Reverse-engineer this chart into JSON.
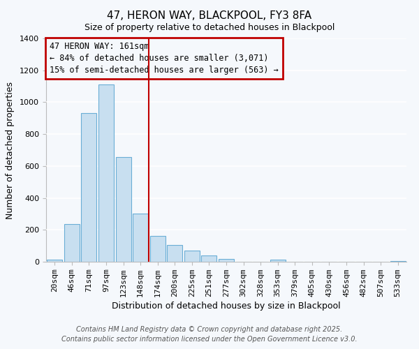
{
  "title": "47, HERON WAY, BLACKPOOL, FY3 8FA",
  "subtitle": "Size of property relative to detached houses in Blackpool",
  "xlabel": "Distribution of detached houses by size in Blackpool",
  "ylabel": "Number of detached properties",
  "bar_labels": [
    "20sqm",
    "46sqm",
    "71sqm",
    "97sqm",
    "123sqm",
    "148sqm",
    "174sqm",
    "200sqm",
    "225sqm",
    "251sqm",
    "277sqm",
    "302sqm",
    "328sqm",
    "353sqm",
    "379sqm",
    "405sqm",
    "430sqm",
    "456sqm",
    "482sqm",
    "507sqm",
    "533sqm"
  ],
  "bar_values": [
    15,
    235,
    930,
    1110,
    655,
    300,
    160,
    105,
    68,
    38,
    18,
    0,
    0,
    15,
    0,
    0,
    0,
    0,
    0,
    0,
    5
  ],
  "bar_face_color": "#c8dff0",
  "bar_edge_color": "#6aaed6",
  "vline_x": 5.5,
  "vline_color": "#c00000",
  "annotation_title": "47 HERON WAY: 161sqm",
  "annotation_line1": "← 84% of detached houses are smaller (3,071)",
  "annotation_line2": "15% of semi-detached houses are larger (563) →",
  "annotation_box_color": "#c00000",
  "ylim": [
    0,
    1400
  ],
  "yticks": [
    0,
    200,
    400,
    600,
    800,
    1000,
    1200,
    1400
  ],
  "footer1": "Contains HM Land Registry data © Crown copyright and database right 2025.",
  "footer2": "Contains public sector information licensed under the Open Government Licence v3.0.",
  "bg_color": "#f5f8fc",
  "grid_color": "#ffffff",
  "title_fontsize": 11,
  "axis_label_fontsize": 9,
  "tick_fontsize": 8,
  "annotation_fontsize": 8.5,
  "footer_fontsize": 7
}
